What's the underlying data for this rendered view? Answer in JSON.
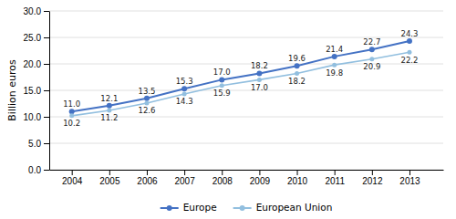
{
  "chart_data": {
    "type": "line",
    "x": [
      2004,
      2005,
      2006,
      2007,
      2008,
      2009,
      2010,
      2011,
      2012,
      2013
    ],
    "xlim": [
      2003.4,
      2013.9
    ],
    "xticks": [
      2004,
      2005,
      2006,
      2007,
      2008,
      2009,
      2010,
      2011,
      2012,
      2013
    ],
    "ylim": [
      0,
      30
    ],
    "yticks": [
      {
        "value": 0.0,
        "label": "0.0"
      },
      {
        "value": 5.0,
        "label": "5.0"
      },
      {
        "value": 10.0,
        "label": "10.0"
      },
      {
        "value": 15.0,
        "label": "15.0"
      },
      {
        "value": 20.0,
        "label": "20.0"
      },
      {
        "value": 25.0,
        "label": "25.0"
      },
      {
        "value": 30.0,
        "label": "30.0"
      }
    ],
    "ylabel": "Billion euros",
    "grid": true,
    "legend": "bottom",
    "data_labels": true,
    "series": [
      {
        "name": "Europe",
        "color": "#4472C4",
        "marker": "circle",
        "values": [
          11.0,
          12.1,
          13.5,
          15.3,
          17.0,
          18.2,
          19.6,
          21.4,
          22.7,
          24.3
        ],
        "value_labels": [
          "11.0",
          "12.1",
          "13.5",
          "15.3",
          "17.0",
          "18.2",
          "19.6",
          "21.4",
          "22.7",
          "24.3"
        ]
      },
      {
        "name": "European Union",
        "color": "#92BFDF",
        "marker": "circle",
        "values": [
          10.2,
          11.2,
          12.6,
          14.3,
          15.9,
          17.0,
          18.2,
          19.8,
          20.9,
          22.2
        ],
        "value_labels": [
          "10.2",
          "11.2",
          "12.6",
          "14.3",
          "15.9",
          "17.0",
          "18.2",
          "19.8",
          "20.9",
          "22.2"
        ]
      }
    ]
  }
}
